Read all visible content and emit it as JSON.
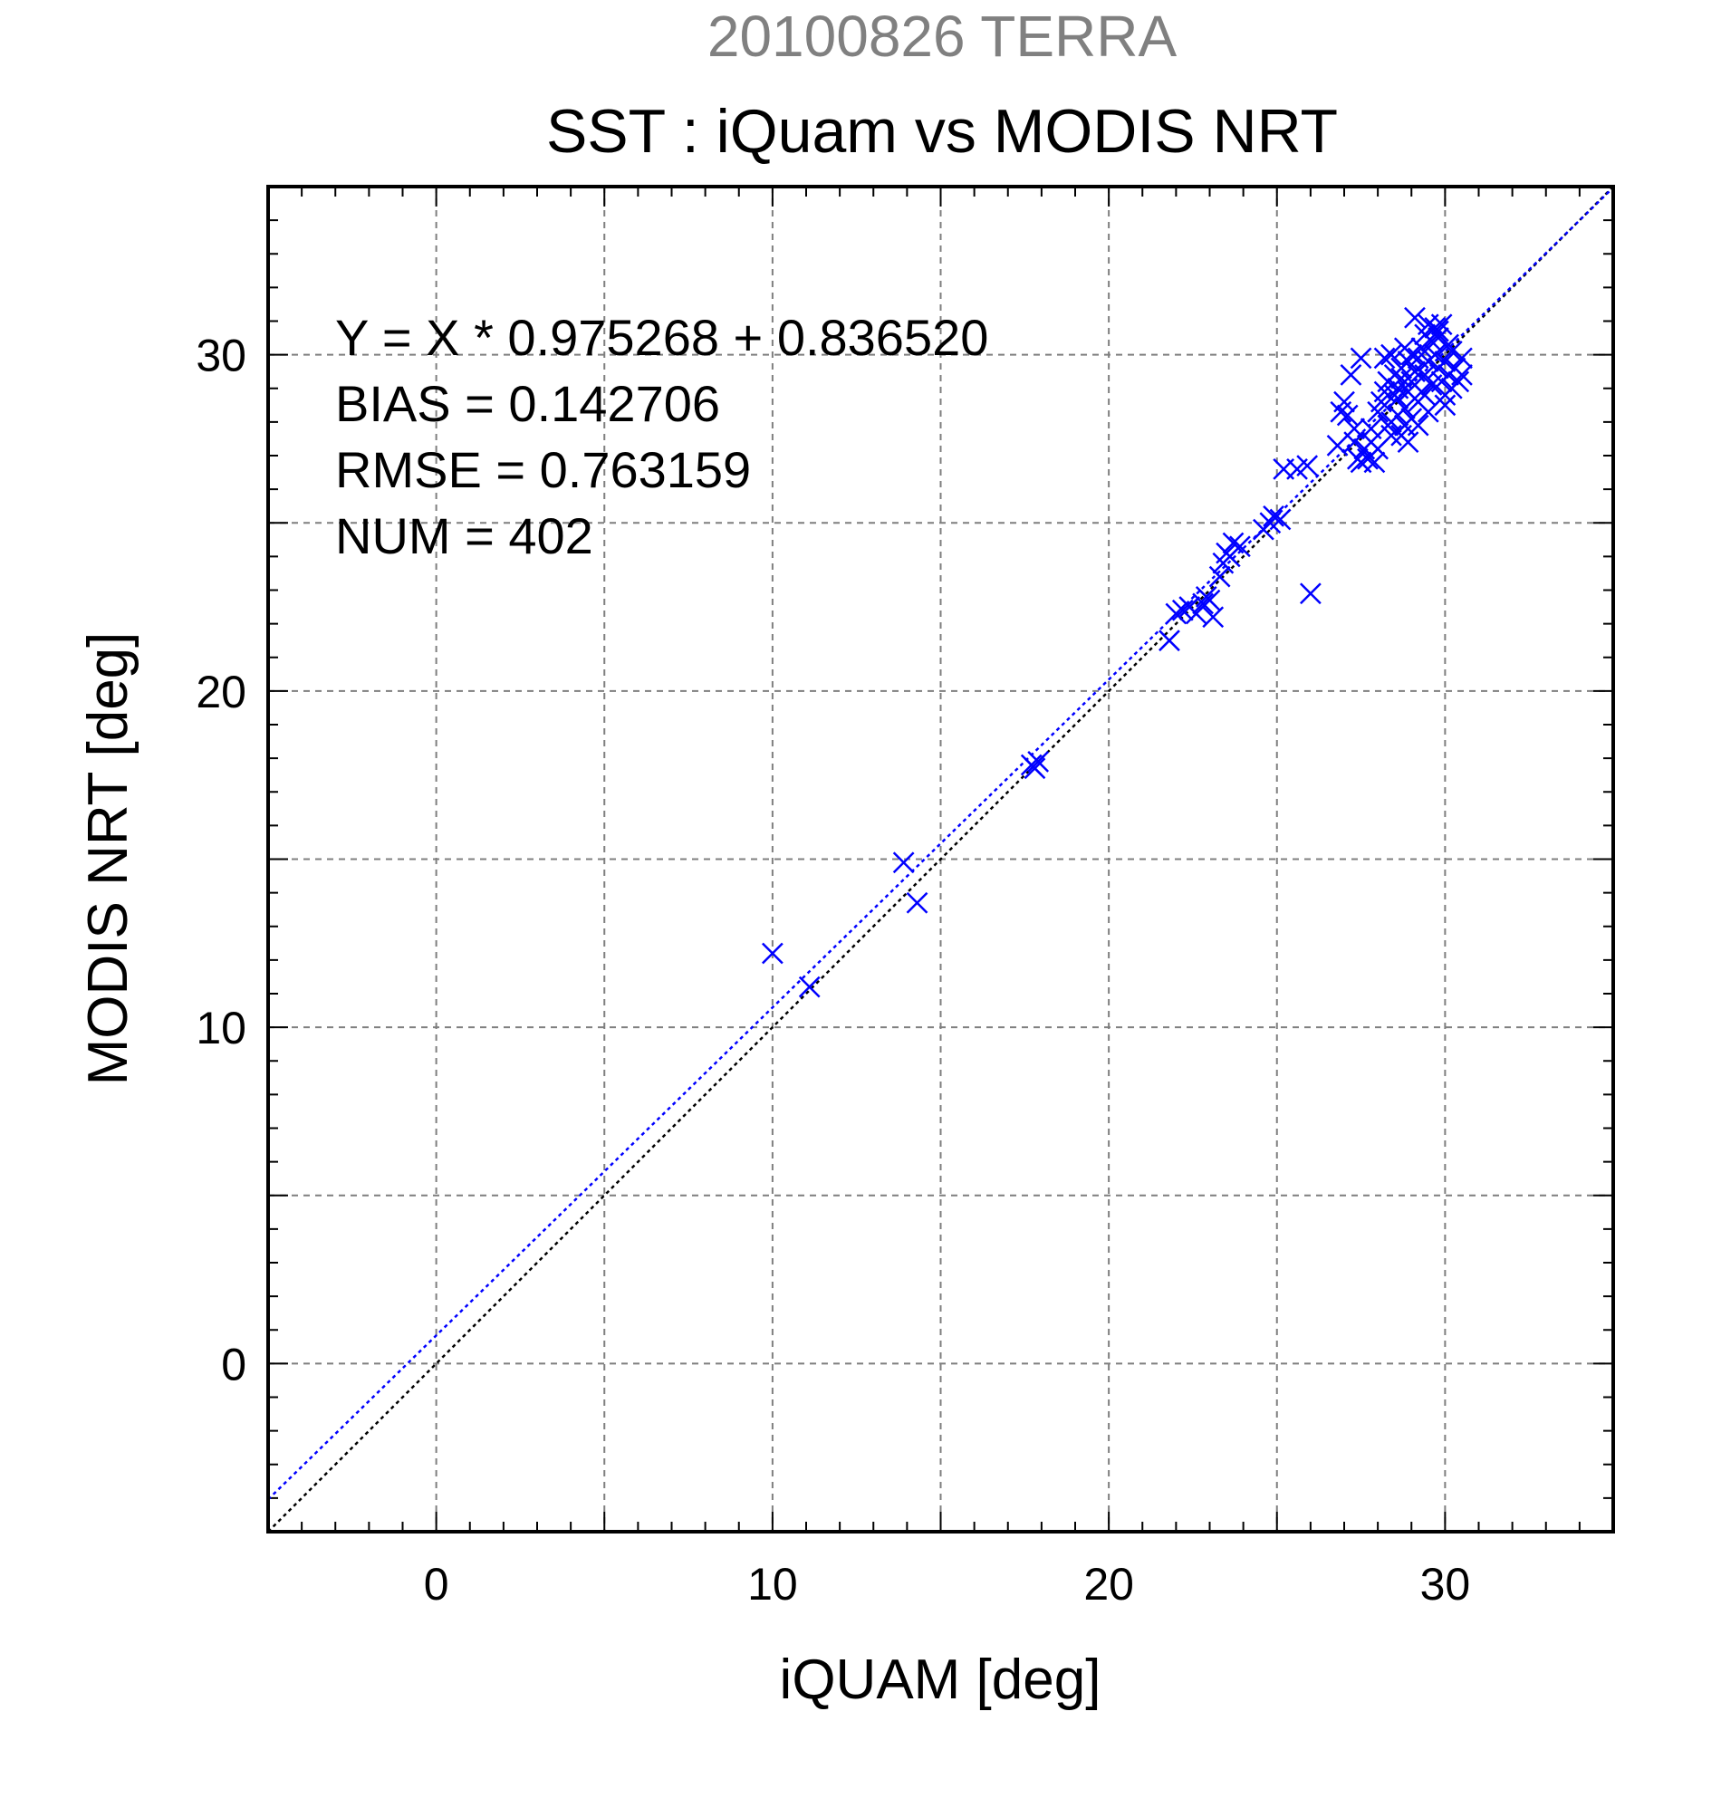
{
  "chart_data": {
    "type": "scatter",
    "supertitle": "20100826 TERRA",
    "title": "SST : iQuam vs MODIS NRT",
    "xlabel": "iQUAM [deg]",
    "ylabel": "MODIS NRT [deg]",
    "xlim": [
      -5,
      35
    ],
    "ylim": [
      -5,
      35
    ],
    "xticks": [
      "0",
      "10",
      "20",
      "30"
    ],
    "yticks": [
      "0",
      "10",
      "20",
      "30"
    ],
    "xtick_values": [
      0,
      10,
      20,
      30
    ],
    "ytick_values": [
      0,
      10,
      20,
      30
    ],
    "grid": true,
    "grid_values": [
      0,
      5,
      10,
      15,
      20,
      25,
      30
    ],
    "stats": {
      "equation": "Y = X * 0.975268 + 0.836520",
      "bias": "BIAS = 0.142706",
      "rmse": "RMSE = 0.763159",
      "num": "NUM = 402"
    },
    "fit_line": {
      "slope": 0.975268,
      "intercept": 0.83652,
      "color": "#0000ff"
    },
    "identity_line": {
      "slope": 1,
      "intercept": 0,
      "color": "#000000"
    },
    "marker_color": "#0000ff",
    "points": [
      [
        10.0,
        12.2
      ],
      [
        11.1,
        11.2
      ],
      [
        13.9,
        14.9
      ],
      [
        14.3,
        13.7
      ],
      [
        17.7,
        17.8
      ],
      [
        17.9,
        17.9
      ],
      [
        17.8,
        17.7
      ],
      [
        21.8,
        21.5
      ],
      [
        22.0,
        22.3
      ],
      [
        22.2,
        22.4
      ],
      [
        22.4,
        22.5
      ],
      [
        22.6,
        22.3
      ],
      [
        22.8,
        22.6
      ],
      [
        22.9,
        22.8
      ],
      [
        23.0,
        22.7
      ],
      [
        23.1,
        22.2
      ],
      [
        23.3,
        23.4
      ],
      [
        23.4,
        23.8
      ],
      [
        23.6,
        24.0
      ],
      [
        23.7,
        24.4
      ],
      [
        23.9,
        24.3
      ],
      [
        23.5,
        24.1
      ],
      [
        24.6,
        24.8
      ],
      [
        24.8,
        25.0
      ],
      [
        24.9,
        25.2
      ],
      [
        25.1,
        25.1
      ],
      [
        25.2,
        26.6
      ],
      [
        25.6,
        26.6
      ],
      [
        25.9,
        26.7
      ],
      [
        26.0,
        22.9
      ],
      [
        26.8,
        27.3
      ],
      [
        26.9,
        28.3
      ],
      [
        27.0,
        28.6
      ],
      [
        27.1,
        28.2
      ],
      [
        27.2,
        29.4
      ],
      [
        27.3,
        27.8
      ],
      [
        27.3,
        27.4
      ],
      [
        27.4,
        26.9
      ],
      [
        27.5,
        26.8
      ],
      [
        27.6,
        27.2
      ],
      [
        27.7,
        26.9
      ],
      [
        27.8,
        27.4
      ],
      [
        27.9,
        26.8
      ],
      [
        27.5,
        29.9
      ],
      [
        27.8,
        27.8
      ],
      [
        28.0,
        28.3
      ],
      [
        28.1,
        28.6
      ],
      [
        28.2,
        29.9
      ],
      [
        28.3,
        27.9
      ],
      [
        28.3,
        29.2
      ],
      [
        28.4,
        28.0
      ],
      [
        28.4,
        30.0
      ],
      [
        28.5,
        28.8
      ],
      [
        28.5,
        29.4
      ],
      [
        28.6,
        28.2
      ],
      [
        28.6,
        29.0
      ],
      [
        28.7,
        27.6
      ],
      [
        28.7,
        29.6
      ],
      [
        28.8,
        28.4
      ],
      [
        28.8,
        30.2
      ],
      [
        28.9,
        28.9
      ],
      [
        28.9,
        27.4
      ],
      [
        29.0,
        29.2
      ],
      [
        29.0,
        28.1
      ],
      [
        29.1,
        31.1
      ],
      [
        29.1,
        29.5
      ],
      [
        29.2,
        28.6
      ],
      [
        29.2,
        29.9
      ],
      [
        29.3,
        30.2
      ],
      [
        29.3,
        28.9
      ],
      [
        29.4,
        29.4
      ],
      [
        29.4,
        30.6
      ],
      [
        29.5,
        29.8
      ],
      [
        29.5,
        28.3
      ],
      [
        29.6,
        30.4
      ],
      [
        29.6,
        29.1
      ],
      [
        29.7,
        30.0
      ],
      [
        29.7,
        30.8
      ],
      [
        29.8,
        29.6
      ],
      [
        29.8,
        30.5
      ],
      [
        29.9,
        29.2
      ],
      [
        29.9,
        30.9
      ],
      [
        30.0,
        29.8
      ],
      [
        30.0,
        28.8
      ],
      [
        30.1,
        30.3
      ],
      [
        30.1,
        29.4
      ],
      [
        30.2,
        29.0
      ],
      [
        30.3,
        29.6
      ],
      [
        30.4,
        29.2
      ],
      [
        30.5,
        29.9
      ],
      [
        30.5,
        29.4
      ],
      [
        30.0,
        28.5
      ],
      [
        29.4,
        28.8
      ],
      [
        28.6,
        28.7
      ],
      [
        28.9,
        29.8
      ],
      [
        28.2,
        28.9
      ],
      [
        28.4,
        27.6
      ],
      [
        29.2,
        27.9
      ],
      [
        28.0,
        27.2
      ],
      [
        29.5,
        30.9
      ],
      [
        29.8,
        30.7
      ],
      [
        30.2,
        30.1
      ],
      [
        28.7,
        29.3
      ],
      [
        29.0,
        30.0
      ],
      [
        28.8,
        27.9
      ]
    ]
  }
}
